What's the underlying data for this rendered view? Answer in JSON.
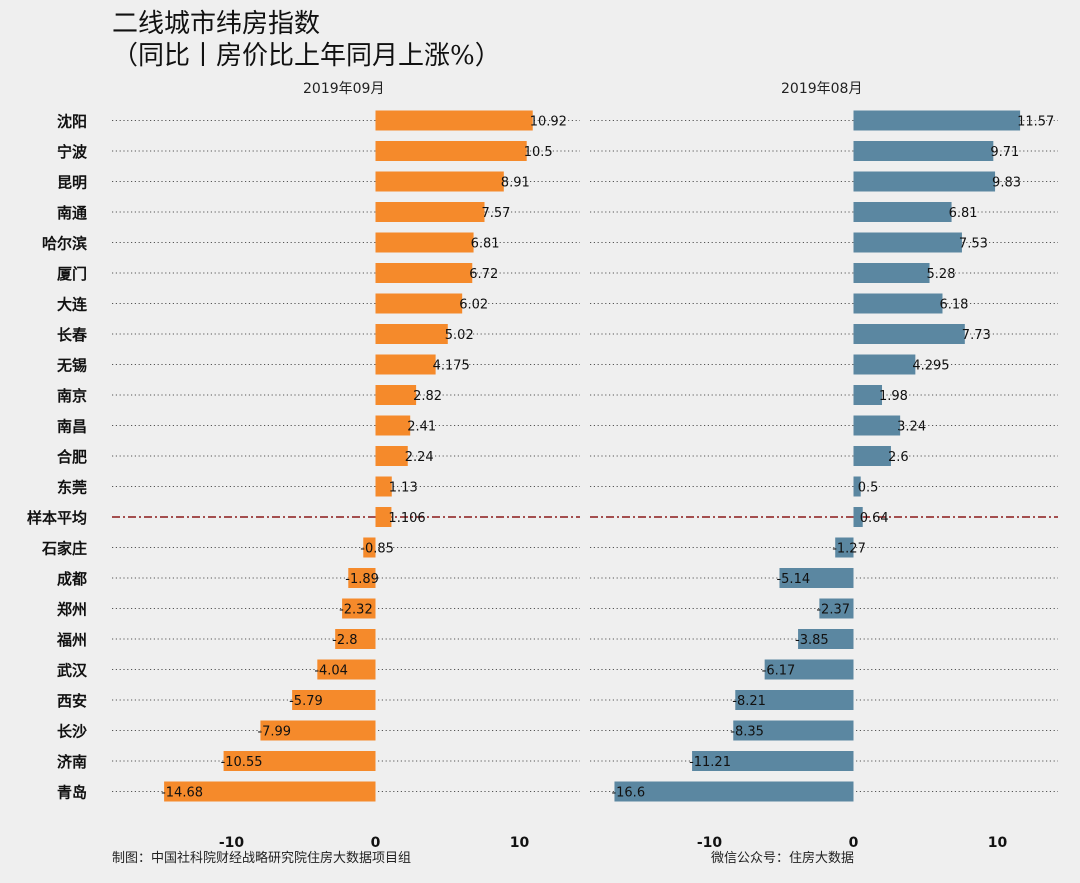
{
  "title_line1": "二线城市纬房指数",
  "title_line2": "（同比丨房价比上年同月上涨%）",
  "footer_left": "制图：中国社科院财经战略研究院住房大数据项目组",
  "footer_right": "微信公众号：住房大数据",
  "colors": {
    "sep": "#f58a2b",
    "aug": "#5b87a1",
    "avg_line": "#8b1a1a"
  },
  "chart_data": [
    {
      "type": "bar",
      "orientation": "horizontal",
      "title": "2019年09月",
      "categories": [
        "沈阳",
        "宁波",
        "昆明",
        "南通",
        "哈尔滨",
        "厦门",
        "大连",
        "长春",
        "无锡",
        "南京",
        "南昌",
        "合肥",
        "东莞",
        "样本平均",
        "石家庄",
        "成都",
        "郑州",
        "福州",
        "武汉",
        "西安",
        "长沙",
        "济南",
        "青岛"
      ],
      "values": [
        10.92,
        10.5,
        8.91,
        7.57,
        6.81,
        6.72,
        6.02,
        5.02,
        4.175,
        2.82,
        2.41,
        2.24,
        1.13,
        1.106,
        -0.85,
        -1.89,
        -2.32,
        -2.8,
        -4.04,
        -5.79,
        -7.99,
        -10.55,
        -14.68
      ],
      "labels": [
        "10.92",
        "10.5",
        "8.91",
        "7.57",
        "6.81",
        "6.72",
        "6.02",
        "5.02",
        "4.175",
        "2.82",
        "2.41",
        "2.24",
        "1.13",
        "1.106",
        "-0.85",
        "-1.89",
        "-2.32",
        "-2.8",
        "-4.04",
        "-5.79",
        "-7.99",
        "-10.55",
        "-14.68"
      ],
      "xlim": [
        -18.2,
        13.0
      ],
      "xticks": [
        -10,
        0,
        10
      ],
      "xtick_labels": [
        "-10",
        "0",
        "10"
      ],
      "reference_category": "样本平均",
      "grid": "dotted-horizontal"
    },
    {
      "type": "bar",
      "orientation": "horizontal",
      "title": "2019年08月",
      "categories": [
        "沈阳",
        "宁波",
        "昆明",
        "南通",
        "哈尔滨",
        "厦门",
        "大连",
        "长春",
        "无锡",
        "南京",
        "南昌",
        "合肥",
        "东莞",
        "样本平均",
        "石家庄",
        "成都",
        "郑州",
        "福州",
        "武汉",
        "西安",
        "长沙",
        "济南",
        "青岛"
      ],
      "values": [
        11.57,
        9.71,
        9.83,
        6.81,
        7.53,
        5.28,
        6.18,
        7.73,
        4.295,
        1.98,
        3.24,
        2.6,
        0.5,
        0.64,
        -1.27,
        -5.14,
        -2.37,
        -3.85,
        -6.17,
        -8.21,
        -8.35,
        -11.21,
        -16.6
      ],
      "labels": [
        "11.57",
        "9.71",
        "9.83",
        "6.81",
        "7.53",
        "5.28",
        "6.18",
        "7.73",
        "4.295",
        "1.98",
        "3.24",
        "2.6",
        "0.5",
        "0.64",
        "-1.27",
        "-5.14",
        "-2.37",
        "-3.85",
        "-6.17",
        "-8.21",
        "-8.35",
        "-11.21",
        "-16.6"
      ],
      "xlim": [
        -18.2,
        14.0
      ],
      "xticks": [
        -10,
        0,
        10
      ],
      "xtick_labels": [
        "-10",
        "0",
        "10"
      ],
      "reference_category": "样本平均",
      "grid": "dotted-horizontal"
    }
  ]
}
